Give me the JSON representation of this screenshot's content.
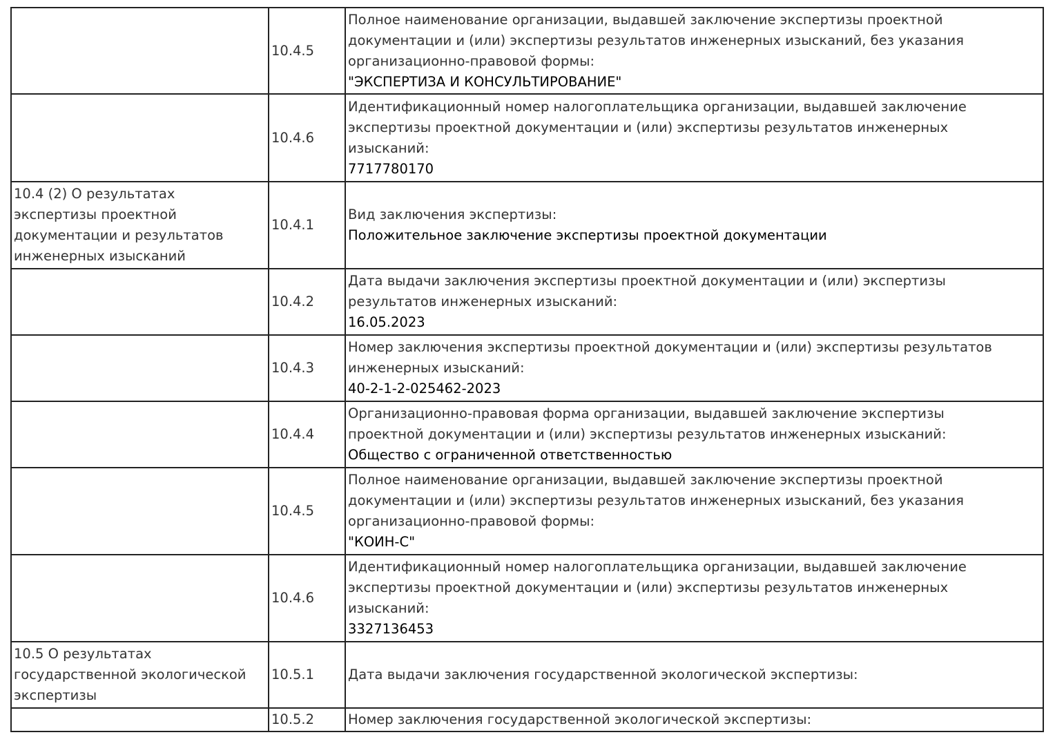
{
  "rows": [
    {
      "section": "",
      "code": "10.4.5",
      "label": "Полное наименование организации, выдавшей заключение экспертизы проектной\nдокументации и (или) экспертизы результатов инженерных изысканий, без указания\nорганизационно-правовой формы:",
      "value": "\"ЭКСПЕРТИЗА И КОНСУЛЬТИРОВАНИЕ\""
    },
    {
      "section": "",
      "code": "10.4.6",
      "label": "Идентификационный номер налогоплательщика организации, выдавшей заключение\nэкспертизы проектной документации и (или) экспертизы результатов инженерных\nизысканий:",
      "value": "7717780170"
    },
    {
      "section": "10.4 (2) О результатах\nэкспертизы проектной\nдокументации и результатов\nинженерных изысканий",
      "code": "10.4.1",
      "label": "Вид заключения экспертизы:",
      "value": "Положительное заключение экспертизы проектной документации"
    },
    {
      "section": "",
      "code": "10.4.2",
      "label": "Дата выдачи заключения экспертизы проектной документации и (или) экспертизы\nрезультатов инженерных изысканий:",
      "value": "16.05.2023"
    },
    {
      "section": "",
      "code": "10.4.3",
      "label": "Номер заключения экспертизы проектной документации и (или) экспертизы результатов\nинженерных изысканий:",
      "value": "40-2-1-2-025462-2023"
    },
    {
      "section": "",
      "code": "10.4.4",
      "label": "Организационно-правовая форма организации, выдавшей заключение экспертизы\nпроектной документации и (или) экспертизы результатов инженерных изысканий:",
      "value": "Общество с ограниченной ответственностью"
    },
    {
      "section": "",
      "code": "10.4.5",
      "label": "Полное наименование организации, выдавшей заключение экспертизы проектной\nдокументации и (или) экспертизы результатов инженерных изысканий, без указания\nорганизационно-правовой формы:",
      "value": "\"КОИН-С\""
    },
    {
      "section": "",
      "code": "10.4.6",
      "label": "Идентификационный номер налогоплательщика организации, выдавшей заключение\nэкспертизы проектной документации и (или) экспертизы результатов инженерных\nизысканий:",
      "value": "3327136453"
    },
    {
      "section": "10.5 О результатах\nгосударственной экологической\nэкспертизы",
      "code": "10.5.1",
      "label": "Дата выдачи заключения государственной экологической экспертизы:",
      "value": ""
    },
    {
      "section": "",
      "code": "10.5.2",
      "label": "Номер заключения государственной экологической экспертизы:",
      "value": ""
    }
  ]
}
